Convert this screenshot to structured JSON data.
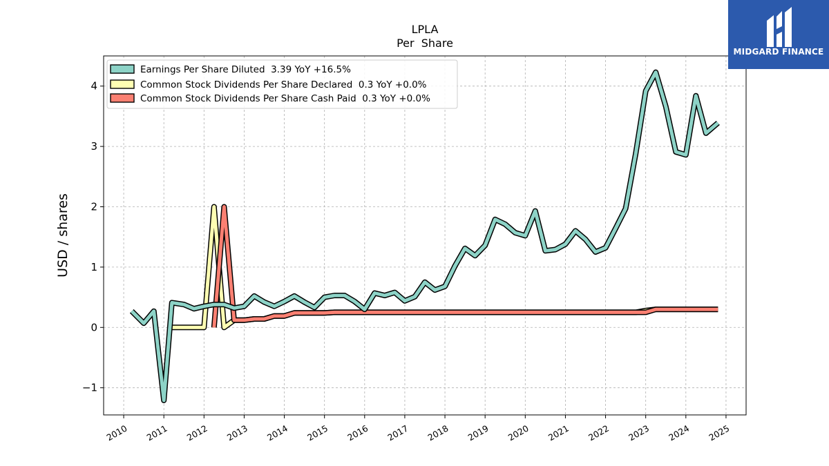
{
  "logo": {
    "text": "MIDGARD FINANCE",
    "bg": "#2c5aad"
  },
  "chart_data": {
    "type": "line",
    "title": "LPLA",
    "subtitle": "Per  Share",
    "ylabel": "USD / shares",
    "xlim": [
      2009.5,
      2025.5
    ],
    "ylim": [
      -1.45,
      4.5
    ],
    "xticks": [
      2010,
      2011,
      2012,
      2013,
      2014,
      2015,
      2016,
      2017,
      2018,
      2019,
      2020,
      2021,
      2022,
      2023,
      2024,
      2025
    ],
    "yticks": [
      -1,
      0,
      1,
      2,
      3,
      4
    ],
    "ytick_labels": [
      "−1",
      "0",
      "1",
      "2",
      "3",
      "4"
    ],
    "grid": true,
    "legend": "top-left",
    "series": [
      {
        "name": "Earnings Per Share Diluted  3.39 YoY +16.5%",
        "color": "#8dd3c7",
        "x": [
          2010.2,
          2010.5,
          2010.75,
          2011.0,
          2011.2,
          2011.5,
          2011.75,
          2012.0,
          2012.25,
          2012.5,
          2012.75,
          2013.0,
          2013.25,
          2013.5,
          2013.75,
          2014.0,
          2014.25,
          2014.5,
          2014.75,
          2015.0,
          2015.25,
          2015.5,
          2015.75,
          2016.0,
          2016.25,
          2016.5,
          2016.75,
          2017.0,
          2017.25,
          2017.5,
          2017.75,
          2018.0,
          2018.25,
          2018.5,
          2018.75,
          2019.0,
          2019.25,
          2019.5,
          2019.75,
          2020.0,
          2020.25,
          2020.5,
          2020.75,
          2021.0,
          2021.25,
          2021.5,
          2021.75,
          2022.0,
          2022.25,
          2022.5,
          2022.75,
          2023.0,
          2023.25,
          2023.5,
          2023.75,
          2024.0,
          2024.25,
          2024.5,
          2024.8
        ],
        "y": [
          0.27,
          0.07,
          0.27,
          -1.21,
          0.41,
          0.38,
          0.31,
          0.35,
          0.38,
          0.38,
          0.32,
          0.35,
          0.52,
          0.42,
          0.35,
          0.43,
          0.52,
          0.42,
          0.33,
          0.5,
          0.53,
          0.53,
          0.43,
          0.3,
          0.57,
          0.53,
          0.58,
          0.44,
          0.51,
          0.75,
          0.62,
          0.68,
          1.02,
          1.31,
          1.19,
          1.36,
          1.79,
          1.71,
          1.57,
          1.52,
          1.93,
          1.27,
          1.29,
          1.38,
          1.6,
          1.46,
          1.25,
          1.32,
          1.64,
          1.97,
          2.88,
          3.92,
          4.23,
          3.66,
          2.91,
          2.86,
          3.84,
          3.22,
          3.39
        ]
      },
      {
        "name": "Common Stock Dividends Per Share Declared  0.3 YoY +0.0%",
        "color": "#ffffb3",
        "x": [
          2011.2,
          2012.0,
          2012.25,
          2012.5,
          2012.75,
          2013.0,
          2013.25,
          2013.5,
          2013.75,
          2014.0,
          2014.25,
          2014.5,
          2014.75,
          2015.0,
          2015.25,
          2015.5,
          2015.75,
          2016.0,
          2016.25,
          2016.5,
          2017.0,
          2018.0,
          2019.0,
          2020.0,
          2021.0,
          2022.0,
          2022.75,
          2023.0,
          2023.25,
          2023.5,
          2024.0,
          2024.5,
          2024.8
        ],
        "y": [
          0.0,
          0.0,
          2.0,
          0.0,
          0.12,
          0.12,
          0.14,
          0.14,
          0.19,
          0.19,
          0.24,
          0.24,
          0.24,
          0.24,
          0.25,
          0.25,
          0.25,
          0.25,
          0.25,
          0.25,
          0.25,
          0.25,
          0.25,
          0.25,
          0.25,
          0.25,
          0.25,
          0.28,
          0.3,
          0.3,
          0.3,
          0.3,
          0.3
        ]
      },
      {
        "name": "Common Stock Dividends Per Share Cash Paid  0.3 YoY +0.0%",
        "color": "#fb8072",
        "x": [
          2012.25,
          2012.5,
          2012.75,
          2013.0,
          2013.25,
          2013.5,
          2013.75,
          2014.0,
          2014.25,
          2014.5,
          2014.75,
          2015.0,
          2015.25,
          2015.5,
          2015.75,
          2016.0,
          2016.25,
          2016.5,
          2017.0,
          2018.0,
          2019.0,
          2020.0,
          2021.0,
          2022.0,
          2022.75,
          2023.0,
          2023.25,
          2023.5,
          2024.0,
          2024.5,
          2024.8
        ],
        "y": [
          0.0,
          2.0,
          0.12,
          0.12,
          0.14,
          0.14,
          0.19,
          0.19,
          0.24,
          0.24,
          0.24,
          0.24,
          0.25,
          0.25,
          0.25,
          0.25,
          0.25,
          0.25,
          0.25,
          0.25,
          0.25,
          0.25,
          0.25,
          0.25,
          0.25,
          0.25,
          0.3,
          0.3,
          0.3,
          0.3,
          0.3
        ]
      }
    ]
  }
}
